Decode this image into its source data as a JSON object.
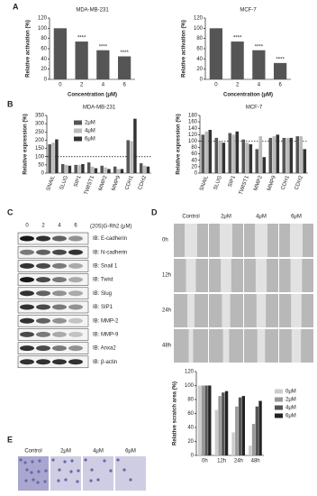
{
  "panel_labels": [
    "A",
    "B",
    "C",
    "D",
    "E"
  ],
  "chart_data": [
    {
      "type": "bar",
      "title": "MDA-MB-231",
      "ylabel": "Relative activation (%)",
      "xlabel": "Concentration (μM)",
      "categories": [
        "0",
        "2",
        "4",
        "6"
      ],
      "values": [
        100,
        74,
        57,
        45
      ],
      "color": "#555555",
      "ylim": [
        0,
        120
      ],
      "yticks": [
        0,
        20,
        40,
        60,
        80,
        100,
        120
      ],
      "annotations": [
        null,
        "****",
        "****",
        "****"
      ]
    },
    {
      "type": "bar",
      "title": "MCF-7",
      "ylabel": "Relative activation (%)",
      "xlabel": "Concentration (μM)",
      "categories": [
        "0",
        "2",
        "4",
        "6"
      ],
      "values": [
        100,
        74,
        57,
        32
      ],
      "color": "#555555",
      "ylim": [
        0,
        120
      ],
      "yticks": [
        0,
        20,
        40,
        60,
        80,
        100,
        120
      ],
      "annotations": [
        null,
        "****",
        "****",
        "****"
      ]
    },
    {
      "type": "bar",
      "title": "MDA-MB-231",
      "ylabel": "Relative expression (%)",
      "categories": [
        "SNAIL",
        "SLUG",
        "SIP1",
        "TWIST1",
        "MMP2",
        "MMP9",
        "CDH1",
        "CDH2"
      ],
      "series": [
        {
          "name": "2μM",
          "color": "#555555",
          "values": [
            175,
            55,
            50,
            65,
            45,
            40,
            200,
            60
          ]
        },
        {
          "name": "4μM",
          "color": "#bbbbbb",
          "values": [
            185,
            50,
            50,
            40,
            35,
            25,
            195,
            45
          ]
        },
        {
          "name": "6μM",
          "color": "#333333",
          "values": [
            205,
            45,
            55,
            30,
            25,
            25,
            330,
            40
          ]
        }
      ],
      "ylim": [
        0,
        350
      ],
      "yticks": [
        0,
        50,
        100,
        150,
        200,
        250,
        300,
        350
      ],
      "reference_line": 100,
      "legend": "upper right"
    },
    {
      "type": "bar",
      "title": "MCF-7",
      "ylabel": "Relative expression (%)",
      "categories": [
        "SNAIL",
        "SLUG",
        "SIP1",
        "TWIST1",
        "MMP2",
        "MMP9",
        "CDH1",
        "CDH2"
      ],
      "series": [
        {
          "color": "#555555",
          "values": [
            120,
            110,
            125,
            105,
            75,
            110,
            110,
            115
          ]
        },
        {
          "color": "#bbbbbb",
          "values": [
            130,
            100,
            120,
            95,
            115,
            115,
            110,
            115
          ]
        },
        {
          "color": "#333333",
          "values": [
            135,
            95,
            130,
            90,
            50,
            120,
            110,
            75
          ]
        }
      ],
      "ylim": [
        0,
        180
      ],
      "yticks": [
        0,
        20,
        40,
        60,
        80,
        100,
        120,
        140,
        160,
        180
      ],
      "reference_line": 100
    },
    {
      "type": "bar",
      "ylabel": "Relative scratch area (%)",
      "categories": [
        "0h",
        "12h",
        "24h",
        "48h"
      ],
      "series": [
        {
          "name": "0μM",
          "color": "#cccccc",
          "values": [
            100,
            65,
            33,
            14
          ]
        },
        {
          "name": "2μM",
          "color": "#999999",
          "values": [
            100,
            85,
            70,
            45
          ]
        },
        {
          "name": "4μM",
          "color": "#555555",
          "values": [
            100,
            90,
            83,
            70
          ]
        },
        {
          "name": "6μM",
          "color": "#222222",
          "values": [
            100,
            92,
            85,
            78
          ]
        }
      ],
      "ylim": [
        0,
        120
      ],
      "yticks": [
        0,
        20,
        40,
        60,
        80,
        100,
        120
      ],
      "legend": "right"
    }
  ],
  "blot": {
    "treatment": "(20S)G-Rh2 (μM)",
    "lanes": [
      "0",
      "2",
      "4",
      "6"
    ],
    "rows": [
      "IB: E-cadherin",
      "IB: N-cadherin",
      "IB: Snail 1",
      "IB: Twist",
      "IB: Slug",
      "IB: SIP1",
      "IB: MMP-2",
      "IB: MMP-9",
      "IB: Anxa2",
      "IB: β-actin"
    ]
  },
  "scratch": {
    "columns": [
      "Control",
      "2μM",
      "4μM",
      "6μM"
    ],
    "rows": [
      "0h",
      "12h",
      "24h",
      "48h"
    ]
  },
  "transwell": {
    "columns": [
      "Control",
      "2μM",
      "4μM",
      "6μM"
    ]
  }
}
